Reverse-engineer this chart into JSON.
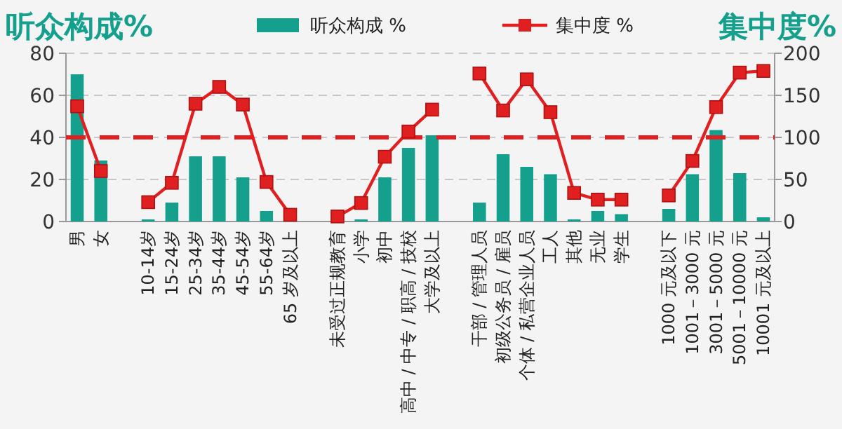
{
  "chart_data": {
    "type": "bar",
    "ylabel": "听众构成%",
    "y2label": "集中度%",
    "categories": [
      "男",
      "女",
      null,
      "10-14岁",
      "15-24岁",
      "25-34岁",
      "35-44岁",
      "45-54岁",
      "55-64岁",
      "65 岁及以上",
      null,
      "未受过正规教育",
      "小学",
      "初中",
      "高中 / 中专 / 职高 / 技校",
      "大学及以上",
      null,
      "干部 / 管理人员",
      "初级公务员 / 雇员",
      "个体 / 私营企业人员",
      "工人",
      "其他",
      "无业",
      "学生",
      null,
      "1000 元及以下",
      "1001－3000 元",
      "3001－5000 元",
      "5001－10000 元",
      "10001 元及以上"
    ],
    "series": [
      {
        "name": "听众构成 %",
        "color": "#14a08c",
        "values": [
          70,
          29,
          null,
          1,
          9,
          31,
          31,
          21,
          5,
          0,
          null,
          0,
          1,
          21,
          35,
          41,
          null,
          9,
          32,
          26,
          22.5,
          1,
          5,
          3.5,
          null,
          6,
          22.5,
          43.5,
          23,
          2
        ]
      },
      {
        "name": "集中度 %",
        "type": "line",
        "axis": "y2",
        "color": "#e02020",
        "marker": "square",
        "values": [
          137,
          60,
          null,
          23,
          46,
          140,
          160,
          139,
          47,
          8,
          null,
          6,
          22,
          77,
          107,
          133,
          null,
          176,
          132,
          169,
          130,
          34,
          26,
          26,
          null,
          31,
          72,
          136,
          177,
          179
        ]
      }
    ],
    "ylim": [
      0,
      80
    ],
    "yticks": [
      0,
      20,
      40,
      60,
      80
    ],
    "y2lim": [
      0,
      200
    ],
    "y2ticks": [
      0,
      50,
      100,
      150,
      200
    ],
    "ref_lines": [
      {
        "axis": "y2",
        "value": 100,
        "color": "#e02020",
        "line_style": "dashed"
      }
    ],
    "grid": "y",
    "legend": "top"
  }
}
